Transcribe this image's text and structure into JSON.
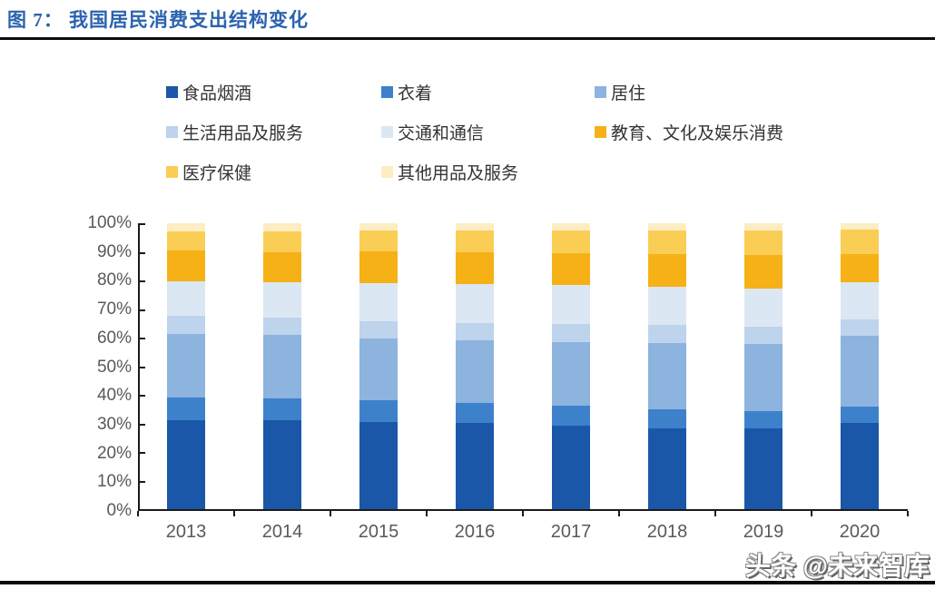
{
  "title": "图 7： 我国居民消费支出结构变化",
  "watermark": "头条 @未来智库",
  "colors": {
    "title_blue": "#2B63AE",
    "axis_line": "#1a1a1a",
    "axis_label_gray": "#595959",
    "legend_text": "#333333"
  },
  "chart_data": {
    "type": "bar",
    "stacked": true,
    "stacked_percent": true,
    "title": "我国居民消费支出结构变化",
    "xlabel": "",
    "ylabel": "",
    "ylim": [
      0,
      100
    ],
    "grid": false,
    "legend_position": "top",
    "y_ticks": [
      "0%",
      "10%",
      "20%",
      "30%",
      "40%",
      "50%",
      "60%",
      "70%",
      "80%",
      "90%",
      "100%"
    ],
    "categories": [
      "2013",
      "2014",
      "2015",
      "2016",
      "2017",
      "2018",
      "2019",
      "2020"
    ],
    "series": [
      {
        "name": "食品烟酒",
        "color": "#1A57A9",
        "values": [
          31.2,
          31.0,
          30.6,
          30.1,
          29.3,
          28.4,
          28.2,
          30.2
        ]
      },
      {
        "name": "衣着",
        "color": "#3E81CB",
        "values": [
          7.8,
          7.6,
          7.4,
          7.0,
          6.8,
          6.5,
          6.2,
          5.8
        ]
      },
      {
        "name": "居住",
        "color": "#8DB3DF",
        "values": [
          22.4,
          22.1,
          21.8,
          21.9,
          22.4,
          23.4,
          23.4,
          24.6
        ]
      },
      {
        "name": "生活用品及服务",
        "color": "#BED3EC",
        "values": [
          6.1,
          6.1,
          6.1,
          6.2,
          6.1,
          6.2,
          5.9,
          5.9
        ]
      },
      {
        "name": "交通和通信",
        "color": "#DCE7F4",
        "values": [
          12.3,
          12.3,
          13.3,
          13.7,
          13.6,
          13.5,
          13.3,
          13.0
        ]
      },
      {
        "name": "教育、文化及娱乐消费",
        "color": "#F6B117",
        "values": [
          10.6,
          10.6,
          11.0,
          11.2,
          11.4,
          11.2,
          11.7,
          9.6
        ]
      },
      {
        "name": "医疗保健",
        "color": "#FACD55",
        "values": [
          6.9,
          7.2,
          7.4,
          7.6,
          7.9,
          8.5,
          8.8,
          8.7
        ]
      },
      {
        "name": "其他用品及服务",
        "color": "#FCEDC2",
        "values": [
          2.7,
          2.8,
          2.5,
          2.4,
          2.4,
          2.4,
          2.4,
          2.2
        ]
      }
    ]
  }
}
